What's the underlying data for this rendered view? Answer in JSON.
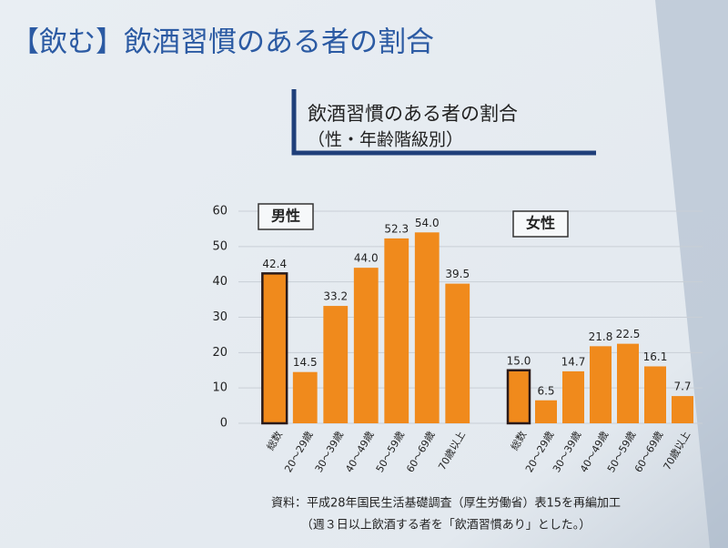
{
  "slide": {
    "title": "【飲む】飲酒習慣のある者の割合",
    "source": "資料：平成28年国民生活基礎調査（厚生労働省）表15を再編加工",
    "note": "（週３日以上飲酒する者を「飲酒習慣あり」とした。）"
  },
  "chart_data": [
    {
      "type": "bar",
      "title": "飲酒習慣のある者の割合",
      "subtitle": "（性・年齢階級別）",
      "group": "男性",
      "categories": [
        "総数",
        "20～29歳",
        "30～39歳",
        "40～49歳",
        "50～59歳",
        "60～69歳",
        "70歳以上"
      ],
      "values": [
        42.4,
        14.5,
        33.2,
        44.0,
        52.3,
        54.0,
        39.5
      ],
      "value_labels": [
        "42.4",
        "14.5",
        "33.2",
        "44.0",
        "52.3",
        "54.0",
        "39.5"
      ],
      "color": "#f08a1c",
      "ylim": [
        0,
        60
      ],
      "yticks": [
        0,
        10,
        20,
        30,
        40,
        50,
        60
      ],
      "grid": true
    },
    {
      "type": "bar",
      "group": "女性",
      "categories": [
        "総数",
        "20～29歳",
        "30～39歳",
        "40～49歳",
        "50～59歳",
        "60～69歳",
        "70歳以上"
      ],
      "values": [
        15.0,
        6.5,
        14.7,
        21.8,
        22.5,
        16.1,
        7.7
      ],
      "value_labels": [
        "15.0",
        "6.5",
        "14.7",
        "21.8",
        "22.5",
        "16.1",
        "7.7"
      ],
      "color": "#f08a1c",
      "ylim": [
        0,
        60
      ]
    }
  ]
}
